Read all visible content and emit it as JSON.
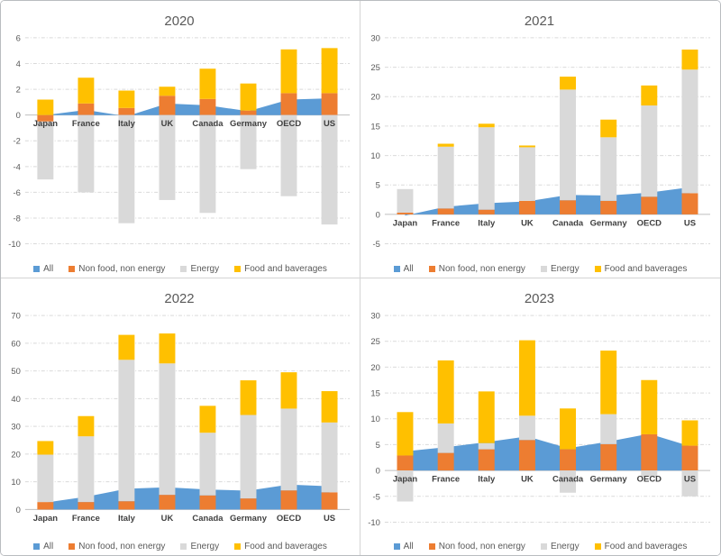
{
  "page": {
    "background": "#ffffff",
    "border_color": "#b9bcc0",
    "grid_divider_color": "#d4d4d4"
  },
  "colors": {
    "all": "#5B9BD5",
    "non_food_non_energy": "#ED7D31",
    "energy": "#D9D9D9",
    "food_and_baverages": "#FFC000",
    "gridline": "#D9D9D9",
    "axis_line": "#BFBFBF",
    "title_text": "#595959",
    "tick_text": "#595959",
    "category_text": "#3F3F3F"
  },
  "legend": {
    "position": "bottom",
    "items": [
      {
        "name": "All",
        "color": "#5B9BD5"
      },
      {
        "name": "Non food, non energy",
        "color": "#ED7D31"
      },
      {
        "name": "Energy",
        "color": "#D9D9D9"
      },
      {
        "name": "Food and baverages",
        "color": "#FFC000"
      }
    ]
  },
  "chart_data": [
    {
      "type": "bar",
      "subtype": "stacked bars with overlaid area series",
      "title": "2020",
      "categories": [
        "Japan",
        "France",
        "Italy",
        "UK",
        "Canada",
        "Germany",
        "OECD",
        "US"
      ],
      "ylim": [
        -10,
        6
      ],
      "ytick_step": 2,
      "grid": true,
      "series": [
        {
          "name": "All",
          "type": "area",
          "color": "#5B9BD5",
          "values": [
            0.0,
            0.4,
            -0.1,
            0.9,
            0.75,
            0.3,
            1.2,
            1.3
          ]
        },
        {
          "name": "Non food, non energy",
          "type": "bar",
          "color": "#ED7D31",
          "values": [
            -0.5,
            0.9,
            0.55,
            1.5,
            1.25,
            0.35,
            1.7,
            1.7
          ]
        },
        {
          "name": "Energy",
          "type": "bar",
          "color": "#D9D9D9",
          "values": [
            -4.5,
            -6.0,
            -8.4,
            -6.6,
            -7.6,
            -4.2,
            -6.3,
            -8.5
          ]
        },
        {
          "name": "Food and baverages",
          "type": "bar",
          "color": "#FFC000",
          "values": [
            1.2,
            2.0,
            1.35,
            0.7,
            2.35,
            2.1,
            3.4,
            3.5
          ]
        }
      ]
    },
    {
      "type": "bar",
      "subtype": "stacked bars with overlaid area series",
      "title": "2021",
      "categories": [
        "Japan",
        "France",
        "Italy",
        "UK",
        "Canada",
        "Germany",
        "OECD",
        "US"
      ],
      "ylim": [
        -5,
        30
      ],
      "ytick_step": 5,
      "grid": true,
      "series": [
        {
          "name": "All",
          "type": "area",
          "color": "#5B9BD5",
          "values": [
            -0.2,
            1.3,
            1.9,
            2.2,
            3.3,
            3.2,
            3.7,
            4.6
          ]
        },
        {
          "name": "Non food, non energy",
          "type": "bar",
          "color": "#ED7D31",
          "values": [
            0.3,
            1.0,
            0.8,
            2.3,
            2.4,
            2.3,
            3.0,
            3.6
          ]
        },
        {
          "name": "Energy",
          "type": "bar",
          "color": "#D9D9D9",
          "values": [
            4.0,
            10.5,
            14.0,
            9.1,
            18.8,
            10.8,
            15.5,
            21.0
          ]
        },
        {
          "name": "Food and baverages",
          "type": "bar",
          "color": "#FFC000",
          "values": [
            0.0,
            0.5,
            0.6,
            0.3,
            2.2,
            3.0,
            3.4,
            3.4
          ]
        }
      ]
    },
    {
      "type": "bar",
      "subtype": "stacked bars with overlaid area series",
      "title": "2022",
      "categories": [
        "Japan",
        "France",
        "Italy",
        "UK",
        "Canada",
        "Germany",
        "OECD",
        "US"
      ],
      "ylim": [
        0,
        70
      ],
      "ytick_step": 10,
      "grid": true,
      "series": [
        {
          "name": "All",
          "type": "area",
          "color": "#5B9BD5",
          "values": [
            2.5,
            4.6,
            7.5,
            8.0,
            7.2,
            6.8,
            9.0,
            8.4
          ]
        },
        {
          "name": "Non food, non energy",
          "type": "bar",
          "color": "#ED7D31",
          "values": [
            2.7,
            2.7,
            3.0,
            5.3,
            5.1,
            4.0,
            6.9,
            6.2
          ]
        },
        {
          "name": "Energy",
          "type": "bar",
          "color": "#D9D9D9",
          "values": [
            17.1,
            23.7,
            51.0,
            47.4,
            22.6,
            30.1,
            29.5,
            25.2
          ]
        },
        {
          "name": "Food and baverages",
          "type": "bar",
          "color": "#FFC000",
          "values": [
            4.9,
            7.3,
            9.0,
            10.8,
            9.7,
            12.5,
            13.1,
            11.3
          ]
        }
      ]
    },
    {
      "type": "bar",
      "subtype": "stacked bars with overlaid area series",
      "title": "2023",
      "categories": [
        "Japan",
        "France",
        "Italy",
        "UK",
        "Canada",
        "Germany",
        "OECD",
        "US"
      ],
      "ylim": [
        -10,
        30
      ],
      "ytick_step": 5,
      "grid": true,
      "series": [
        {
          "name": "All",
          "type": "area",
          "color": "#5B9BD5",
          "values": [
            3.7,
            4.5,
            5.5,
            6.6,
            4.3,
            5.6,
            7.1,
            4.7
          ]
        },
        {
          "name": "Non food, non energy",
          "type": "bar",
          "color": "#ED7D31",
          "values": [
            2.9,
            3.4,
            4.1,
            5.9,
            4.1,
            5.1,
            7.0,
            4.8
          ]
        },
        {
          "name": "Energy",
          "type": "bar",
          "color": "#D9D9D9",
          "values": [
            -6.0,
            5.7,
            1.2,
            4.7,
            -4.3,
            5.8,
            -1.2,
            -5.0
          ]
        },
        {
          "name": "Food and baverages",
          "type": "bar",
          "color": "#FFC000",
          "values": [
            8.4,
            12.2,
            10.0,
            14.6,
            7.9,
            12.3,
            10.5,
            4.9
          ]
        }
      ]
    }
  ]
}
